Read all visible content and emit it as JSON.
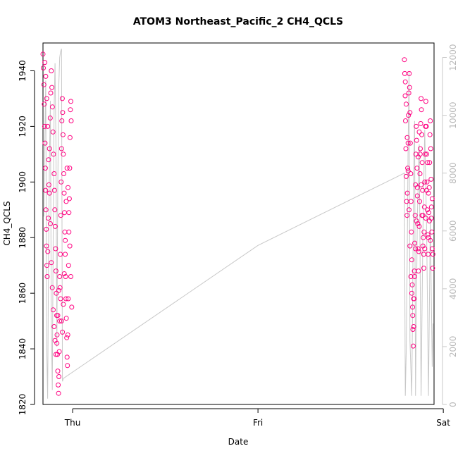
{
  "chart_data": {
    "type": "scatter",
    "title": "ATOM3 Northeast_Pacific_2 CH4_QCLS",
    "xlabel": "Date",
    "ylabel": "CH4_QCLS",
    "x_ticks": [
      "Thu",
      "Fri",
      "Sat"
    ],
    "y_ticks": [
      "1820",
      "1840",
      "1860",
      "1880",
      "1900",
      "1920",
      "1940"
    ],
    "y2_ticks": [
      "0",
      "2000",
      "4000",
      "6000",
      "8000",
      "10000",
      "12000"
    ],
    "ylim": [
      1820,
      1950
    ],
    "y2lim": [
      0,
      12500
    ],
    "xlim_days": [
      -1.16,
      0.95
    ],
    "grid": false,
    "marker_color": "#ff0080",
    "altitude_line_color": "#c8c8c8",
    "series": [
      {
        "type": "scatter",
        "clusters": [
          {
            "points": [
              [
                -1.16,
                1946
              ],
              [
                -1.158,
                1941
              ],
              [
                -1.155,
                1935
              ],
              [
                -1.153,
                1928
              ],
              [
                -1.151,
                1920
              ],
              [
                -1.149,
                1914
              ],
              [
                -1.147,
                1905
              ],
              [
                -1.146,
                1897
              ],
              [
                -1.144,
                1890
              ],
              [
                -1.142,
                1883
              ],
              [
                -1.141,
                1877
              ],
              [
                -1.139,
                1870
              ],
              [
                -1.137,
                1866
              ],
              [
                -1.134,
                1875
              ],
              [
                -1.131,
                1887
              ],
              [
                -1.128,
                1899
              ],
              [
                -1.125,
                1912
              ],
              [
                -1.121,
                1923
              ],
              [
                -1.118,
                1932
              ],
              [
                -1.115,
                1940
              ],
              [
                -1.112,
                1934
              ],
              [
                -1.109,
                1927
              ],
              [
                -1.106,
                1918
              ],
              [
                -1.103,
                1910
              ],
              [
                -1.1,
                1903
              ],
              [
                -1.098,
                1897
              ],
              [
                -1.096,
                1890
              ],
              [
                -1.094,
                1884
              ],
              [
                -1.092,
                1876
              ],
              [
                -1.09,
                1868
              ],
              [
                -1.088,
                1860
              ],
              [
                -1.086,
                1852
              ],
              [
                -1.084,
                1845
              ],
              [
                -1.082,
                1838
              ],
              [
                -1.08,
                1832
              ],
              [
                -1.078,
                1827
              ],
              [
                -1.076,
                1824
              ],
              [
                -1.074,
                1830
              ],
              [
                -1.072,
                1839
              ],
              [
                -1.07,
                1850
              ],
              [
                -1.068,
                1862
              ],
              [
                -1.066,
                1874
              ],
              [
                -1.064,
                1888
              ],
              [
                -1.062,
                1900
              ],
              [
                -1.06,
                1912
              ],
              [
                -1.058,
                1922
              ],
              [
                -1.056,
                1930
              ],
              [
                -1.054,
                1925
              ],
              [
                -1.052,
                1917
              ],
              [
                -1.05,
                1910
              ],
              [
                -1.048,
                1903
              ],
              [
                -1.046,
                1896
              ],
              [
                -1.044,
                1889
              ],
              [
                -1.042,
                1882
              ],
              [
                -1.04,
                1874
              ],
              [
                -1.038,
                1866
              ],
              [
                -1.036,
                1858
              ],
              [
                -1.034,
                1851
              ],
              [
                -1.032,
                1844
              ],
              [
                -1.03,
                1837
              ],
              [
                -1.028,
                1834
              ],
              [
                -1.026,
                1845
              ],
              [
                -1.024,
                1858
              ],
              [
                -1.022,
                1870
              ],
              [
                -1.02,
                1882
              ],
              [
                -1.018,
                1894
              ],
              [
                -1.016,
                1905
              ],
              [
                -1.014,
                1916
              ],
              [
                -1.012,
                1926
              ],
              [
                -1.01,
                1929
              ],
              [
                -1.008,
                1922
              ]
            ]
          },
          {
            "points": [
              [
                -1.15,
                1943
              ],
              [
                -1.145,
                1938
              ],
              [
                -1.14,
                1930
              ],
              [
                -1.135,
                1920
              ],
              [
                -1.13,
                1908
              ],
              [
                -1.125,
                1896
              ],
              [
                -1.12,
                1885
              ],
              [
                -1.115,
                1871
              ],
              [
                -1.11,
                1862
              ],
              [
                -1.105,
                1854
              ],
              [
                -1.1,
                1848
              ],
              [
                -1.095,
                1843
              ],
              [
                -1.09,
                1838
              ],
              [
                -1.085,
                1842
              ],
              [
                -1.08,
                1852
              ],
              [
                -1.075,
                1861
              ],
              [
                -1.07,
                1866
              ],
              [
                -1.065,
                1858
              ],
              [
                -1.06,
                1850
              ],
              [
                -1.055,
                1846
              ],
              [
                -1.05,
                1856
              ],
              [
                -1.045,
                1867
              ],
              [
                -1.04,
                1879
              ],
              [
                -1.035,
                1893
              ],
              [
                -1.03,
                1905
              ],
              [
                -1.025,
                1898
              ],
              [
                -1.02,
                1889
              ],
              [
                -1.015,
                1877
              ],
              [
                -1.01,
                1866
              ],
              [
                -1.005,
                1855
              ]
            ]
          },
          {
            "points": [
              [
                0.79,
                1944
              ],
              [
                0.792,
                1939
              ],
              [
                0.794,
                1931
              ],
              [
                0.796,
                1922
              ],
              [
                0.798,
                1912
              ],
              [
                0.8,
                1902
              ],
              [
                0.802,
                1893
              ],
              [
                0.804,
                1888
              ],
              [
                0.806,
                1896
              ],
              [
                0.808,
                1905
              ],
              [
                0.81,
                1914
              ],
              [
                0.812,
                1924
              ],
              [
                0.814,
                1932
              ],
              [
                0.816,
                1939
              ],
              [
                0.818,
                1934
              ],
              [
                0.82,
                1925
              ],
              [
                0.822,
                1914
              ],
              [
                0.824,
                1903
              ],
              [
                0.826,
                1893
              ],
              [
                0.828,
                1882
              ],
              [
                0.83,
                1872
              ],
              [
                0.832,
                1863
              ],
              [
                0.834,
                1855
              ],
              [
                0.836,
                1847
              ],
              [
                0.838,
                1841
              ],
              [
                0.84,
                1848
              ],
              [
                0.842,
                1858
              ],
              [
                0.844,
                1868
              ],
              [
                0.846,
                1878
              ],
              [
                0.848,
                1888
              ],
              [
                0.85,
                1899
              ],
              [
                0.852,
                1910
              ],
              [
                0.854,
                1920
              ],
              [
                0.856,
                1915
              ],
              [
                0.858,
                1905
              ],
              [
                0.86,
                1895
              ],
              [
                0.862,
                1885
              ],
              [
                0.864,
                1876
              ],
              [
                0.866,
                1868
              ],
              [
                0.868,
                1875
              ],
              [
                0.87,
                1884
              ],
              [
                0.872,
                1893
              ],
              [
                0.874,
                1903
              ],
              [
                0.876,
                1912
              ],
              [
                0.878,
                1921
              ],
              [
                0.88,
                1930
              ],
              [
                0.882,
                1926
              ],
              [
                0.884,
                1917
              ],
              [
                0.886,
                1907
              ],
              [
                0.888,
                1897
              ],
              [
                0.89,
                1888
              ],
              [
                0.892,
                1880
              ],
              [
                0.894,
                1874
              ],
              [
                0.896,
                1882
              ],
              [
                0.898,
                1891
              ],
              [
                0.9,
                1900
              ],
              [
                0.902,
                1910
              ],
              [
                0.904,
                1920
              ],
              [
                0.906,
                1929
              ],
              [
                0.908,
                1920
              ],
              [
                0.91,
                1910
              ],
              [
                0.912,
                1900
              ],
              [
                0.914,
                1890
              ],
              [
                0.916,
                1881
              ],
              [
                0.918,
                1874
              ],
              [
                0.92,
                1880
              ],
              [
                0.922,
                1889
              ],
              [
                0.924,
                1898
              ],
              [
                0.926,
                1907
              ],
              [
                0.928,
                1917
              ],
              [
                0.93,
                1922
              ],
              [
                0.932,
                1912
              ],
              [
                0.934,
                1901
              ],
              [
                0.936,
                1891
              ],
              [
                0.938,
                1882
              ],
              [
                0.94,
                1876
              ],
              [
                0.942,
                1869
              ],
              [
                0.944,
                1874
              ]
            ]
          },
          {
            "points": [
              [
                0.795,
                1936
              ],
              [
                0.8,
                1928
              ],
              [
                0.805,
                1916
              ],
              [
                0.81,
                1904
              ],
              [
                0.815,
                1890
              ],
              [
                0.82,
                1877
              ],
              [
                0.825,
                1866
              ],
              [
                0.83,
                1860
              ],
              [
                0.835,
                1852
              ],
              [
                0.84,
                1858
              ],
              [
                0.845,
                1866
              ],
              [
                0.85,
                1876
              ],
              [
                0.855,
                1886
              ],
              [
                0.86,
                1898
              ],
              [
                0.865,
                1909
              ],
              [
                0.87,
                1918
              ],
              [
                0.875,
                1910
              ],
              [
                0.88,
                1899
              ],
              [
                0.885,
                1888
              ],
              [
                0.89,
                1877
              ],
              [
                0.895,
                1869
              ],
              [
                0.9,
                1876
              ],
              [
                0.905,
                1887
              ],
              [
                0.91,
                1897
              ],
              [
                0.915,
                1907
              ],
              [
                0.92,
                1896
              ],
              [
                0.925,
                1886
              ],
              [
                0.93,
                1879
              ],
              [
                0.935,
                1887
              ],
              [
                0.94,
                1894
              ]
            ]
          }
        ]
      },
      {
        "type": "line",
        "axis": "right",
        "points": [
          [
            -1.155,
            6500
          ],
          [
            -1.15,
            9000
          ],
          [
            -1.145,
            11200
          ],
          [
            -1.14,
            2000
          ],
          [
            -1.135,
            200
          ],
          [
            -1.13,
            5000
          ],
          [
            -1.125,
            8500
          ],
          [
            -1.12,
            10500
          ],
          [
            -1.115,
            3000
          ],
          [
            -1.11,
            500
          ],
          [
            -1.105,
            6000
          ],
          [
            -1.1,
            10200
          ],
          [
            -1.095,
            11800
          ],
          [
            -1.09,
            9000
          ],
          [
            -1.085,
            2000
          ],
          [
            -1.08,
            7500
          ],
          [
            -1.075,
            11000
          ],
          [
            -1.07,
            12000
          ],
          [
            -1.065,
            12200
          ],
          [
            -1.06,
            12300
          ],
          [
            -1.055,
            800
          ],
          [
            -1.05,
            900
          ],
          [
            0.0,
            5500
          ],
          [
            0.79,
            8000
          ],
          [
            0.795,
            300
          ],
          [
            0.8,
            1800
          ],
          [
            0.805,
            5000
          ],
          [
            0.81,
            9000
          ],
          [
            0.815,
            11500
          ],
          [
            0.82,
            2200
          ],
          [
            0.83,
            300
          ],
          [
            0.84,
            8000
          ],
          [
            0.845,
            9800
          ],
          [
            0.85,
            300
          ],
          [
            0.86,
            6500
          ],
          [
            0.87,
            9000
          ],
          [
            0.88,
            300
          ],
          [
            0.89,
            6000
          ],
          [
            0.9,
            9500
          ],
          [
            0.91,
            6000
          ],
          [
            0.92,
            300
          ],
          [
            0.93,
            6500
          ],
          [
            0.94,
            1300
          ],
          [
            0.945,
            2800
          ]
        ]
      }
    ]
  }
}
